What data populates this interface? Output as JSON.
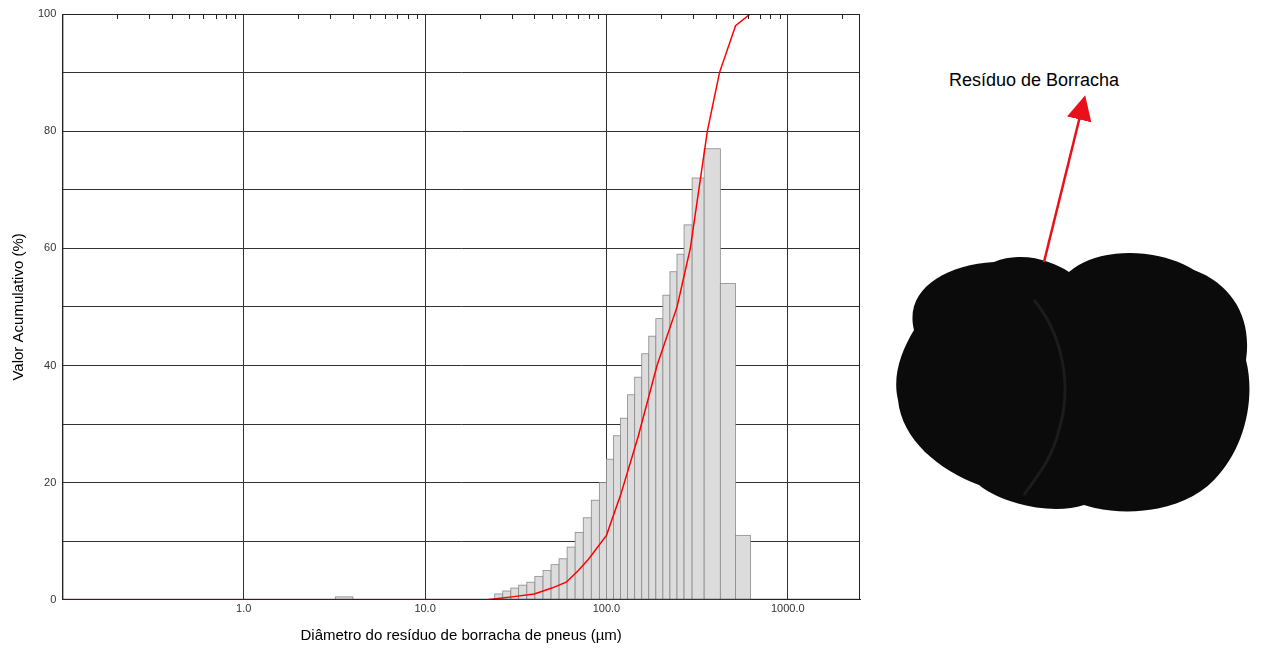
{
  "chart_data": {
    "type": "histogram",
    "x_label": "Diâmetro do resíduo de borracha de pneus (µm)",
    "y_label": "Valor Acumulativo (%)",
    "annotation": "Resíduo de Borracha",
    "log": "x",
    "grid": true,
    "xlim": [
      0.1,
      2500
    ],
    "xticks": [
      {
        "value": 1,
        "label": "1.0"
      },
      {
        "value": 10,
        "label": "10.0"
      },
      {
        "value": 100,
        "label": "100.0"
      },
      {
        "value": 1000,
        "label": "1000.0"
      }
    ],
    "xticks_minor": [
      0.2,
      0.3,
      0.4,
      0.5,
      0.6,
      0.7,
      0.8,
      0.9,
      2,
      3,
      4,
      5,
      6,
      7,
      8,
      9,
      20,
      30,
      40,
      50,
      60,
      70,
      80,
      90,
      200,
      300,
      400,
      500,
      600,
      700,
      800,
      900,
      2000
    ],
    "ylim": [
      0,
      100
    ],
    "yticks": [
      0,
      20,
      40,
      60,
      80,
      100
    ],
    "yticks_minor": [
      10,
      30,
      50,
      70,
      90
    ],
    "series": [
      {
        "type": "bar",
        "color": "#dcdcdc",
        "bins": [
          3.2,
          4.0,
          24.2,
          26.8,
          29.7,
          32.8,
          36.4,
          40.3,
          44.7,
          49.5,
          54.8,
          60.7,
          67.2,
          74.5,
          82.5,
          91.4,
          100,
          109.4,
          119.6,
          130.8,
          143.1,
          156.5,
          171.1,
          187.2,
          204.7,
          223.9,
          244.9,
          267.8,
          296.7,
          345.7,
          424.5,
          514.5,
          622.8
        ],
        "values": [
          0.5,
          0,
          1,
          1.5,
          2,
          2.5,
          3,
          4,
          5,
          6,
          7,
          9,
          11.5,
          14,
          17,
          20,
          24,
          28,
          31,
          35,
          38,
          42,
          45,
          48,
          52,
          56,
          59,
          64,
          72,
          77,
          54,
          11
        ]
      },
      {
        "type": "line",
        "color": "#ff0000",
        "x": [
          0.1,
          22,
          30,
          40,
          50,
          60,
          70,
          80,
          100,
          120,
          150,
          190,
          245,
          290,
          360,
          420,
          515,
          620,
          2500
        ],
        "values": [
          0,
          0,
          0.5,
          1,
          2,
          3,
          5,
          7,
          11,
          18,
          28,
          40,
          50,
          60,
          80,
          90,
          98,
          100,
          100
        ]
      }
    ]
  }
}
